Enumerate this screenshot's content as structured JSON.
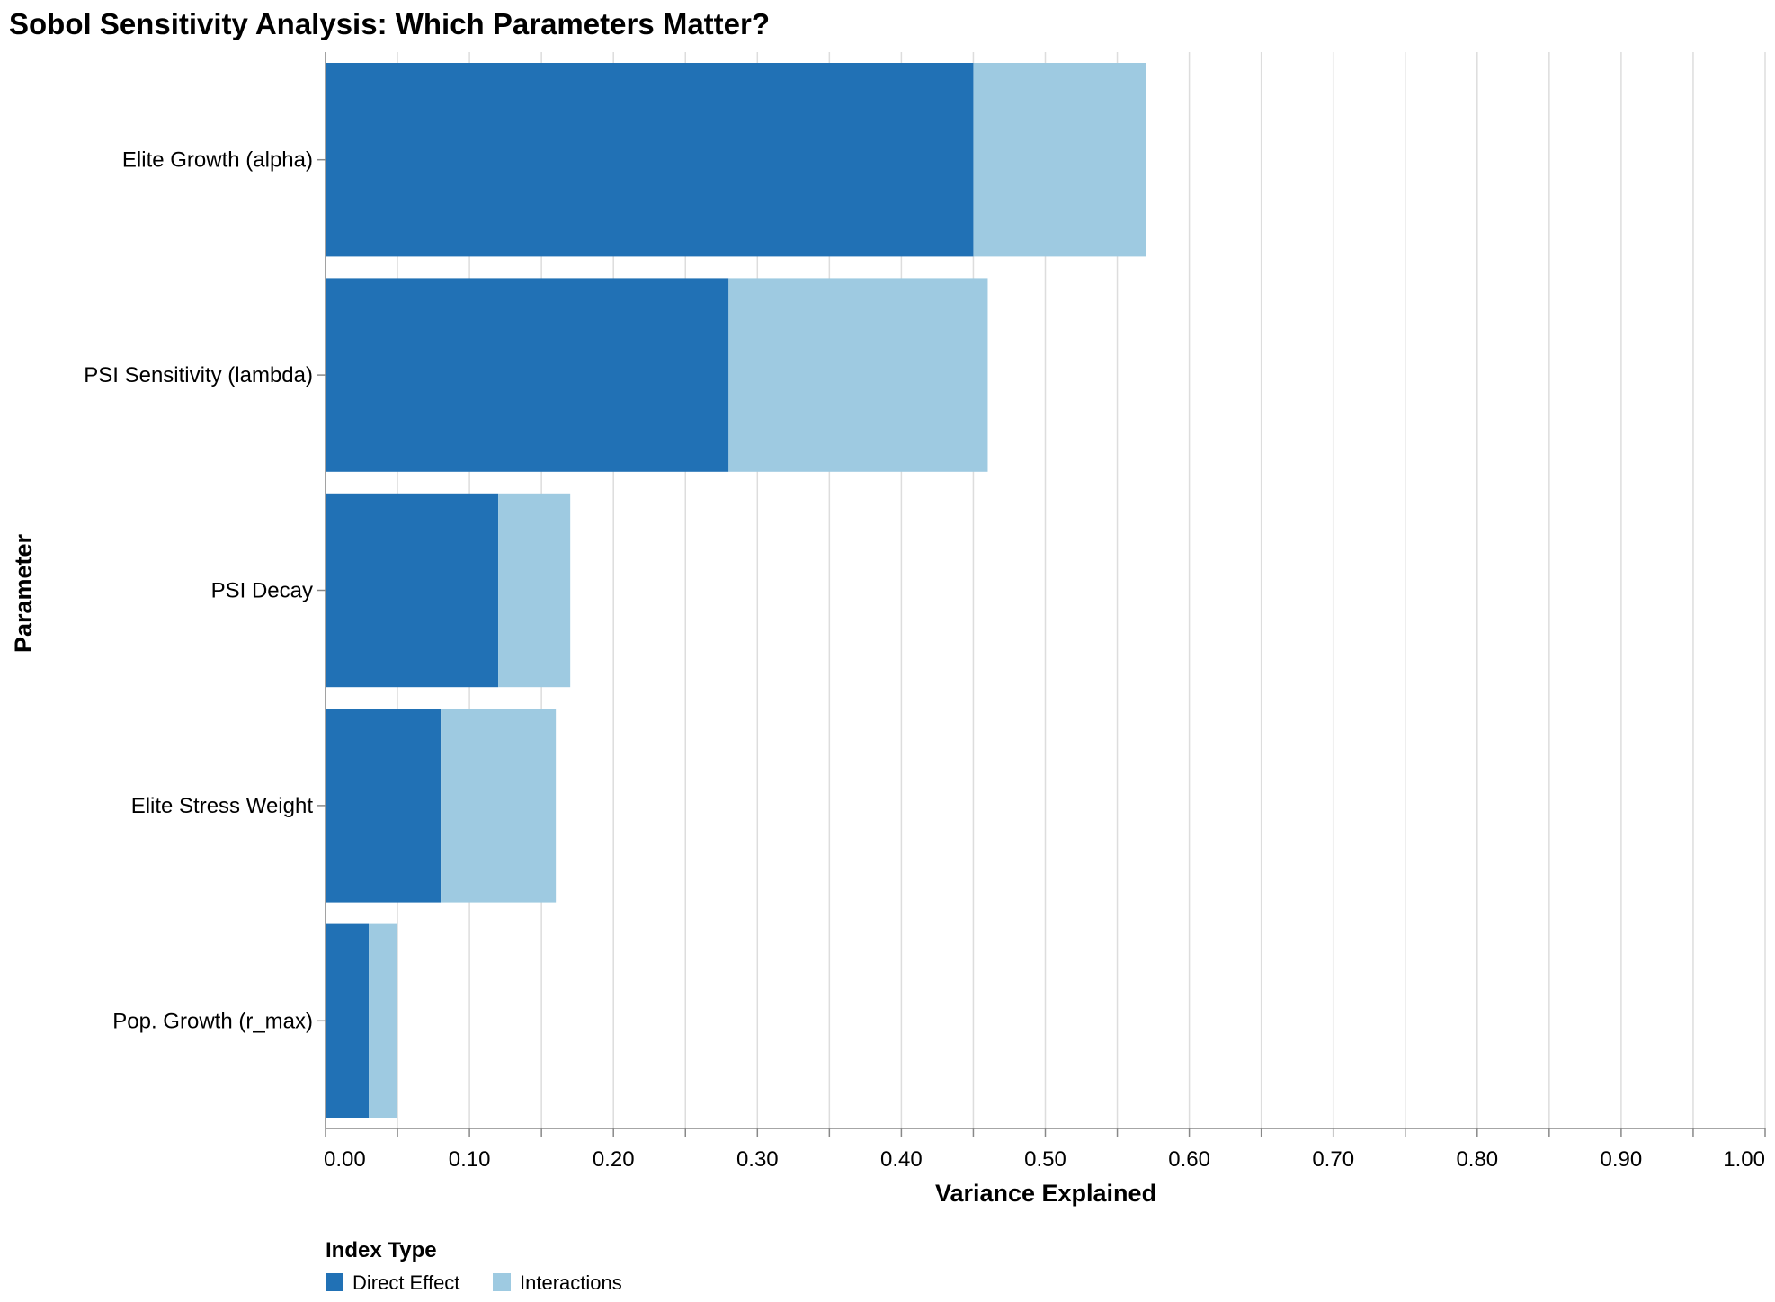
{
  "chart_data": {
    "type": "bar",
    "orientation": "horizontal",
    "stacked": true,
    "title": "Sobol Sensitivity Analysis: Which Parameters Matter?",
    "xlabel": "Variance Explained",
    "ylabel": "Parameter",
    "xlim": [
      0,
      1.0
    ],
    "x_ticks": [
      "0.00",
      "0.10",
      "0.20",
      "0.30",
      "0.40",
      "0.50",
      "0.60",
      "0.70",
      "0.80",
      "0.90",
      "1.00"
    ],
    "grid": true,
    "categories": [
      "Elite Growth (alpha)",
      "PSI Sensitivity (lambda)",
      "PSI Decay",
      "Elite Stress Weight",
      "Pop. Growth (r_max)"
    ],
    "series": [
      {
        "name": "Direct Effect",
        "color": "#2171b5",
        "values": [
          0.45,
          0.28,
          0.12,
          0.08,
          0.03
        ]
      },
      {
        "name": "Interactions",
        "color": "#9ecae1",
        "values": [
          0.12,
          0.18,
          0.05,
          0.08,
          0.02
        ]
      }
    ],
    "legend": {
      "title": "Index Type",
      "position": "bottom-left"
    }
  }
}
